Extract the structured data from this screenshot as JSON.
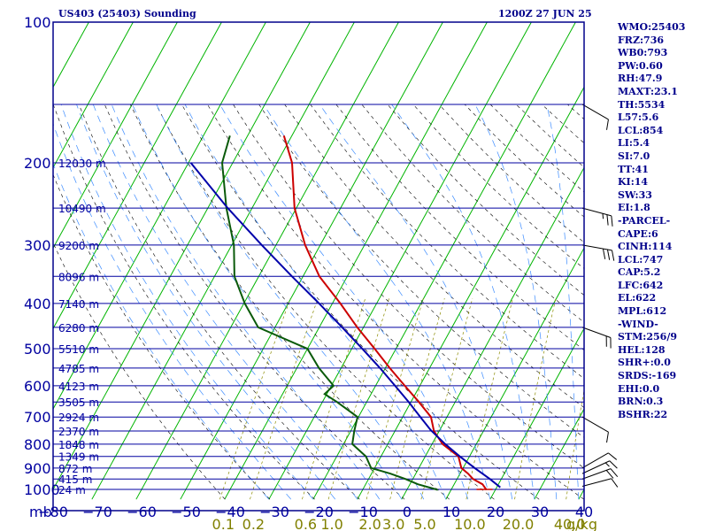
{
  "header": {
    "title": "US403 (25403) Sounding",
    "time": "1200Z 27 JUN 25"
  },
  "indices": [
    "WMO:25403",
    "FRZ:736",
    "WB0:793",
    "PW:0.60",
    "RH:47.9",
    "MAXT:23.1",
    "TH:5534",
    "L57:5.6",
    "LCL:854",
    "LI:5.4",
    "SI:7.0",
    "TT:41",
    "KI:14",
    "SW:33",
    "EI:1.8",
    "-PARCEL-",
    "CAPE:6",
    "CINH:114",
    "LCL:747",
    "CAP:5.2",
    "LFC:642",
    "EL:622",
    "MPL:612",
    "-WIND-",
    "STM:256/9",
    "HEL:128",
    "SHR+:0.0",
    "SRDS:-169",
    "EHI:0.0",
    "BRN:0.3",
    "BSHR:22"
  ],
  "colors": {
    "frame": "#00008b",
    "isobar": "#0000a0",
    "isotherm": "#00b400",
    "dry_adiabat": "#000000",
    "moist_adiabat": "#3c8cff",
    "mixing_ratio": "#8b8b00",
    "temperature": "#cc0000",
    "dewpoint": "#0a5a0a",
    "parcel": "#0000aa",
    "wind": "#000000",
    "label": "#0000a0",
    "mixing_label": "#808000"
  },
  "chart_data": {
    "type": "skew-t",
    "title": "US403 (25403) Sounding",
    "pressure_unit": "mb",
    "pressure_ticks": [
      100,
      200,
      300,
      400,
      500,
      600,
      700,
      800,
      900,
      1000
    ],
    "pressure_range": [
      100,
      1000
    ],
    "temperature_range": [
      -80,
      40
    ],
    "temperature_ticks": [
      -80,
      -70,
      -60,
      -50,
      -40,
      -30,
      -20,
      -10,
      0,
      10,
      20,
      30,
      40
    ],
    "temperature_tick_labels": [
      "−80",
      "−70",
      "−60",
      "−50",
      "−40",
      "−30",
      "−20",
      "−10",
      "0",
      "10",
      "20",
      "30",
      "40"
    ],
    "grid": true,
    "height_labels": [
      {
        "p": 200,
        "text": "12030 m"
      },
      {
        "p": 250,
        "text": "10490 m"
      },
      {
        "p": 300,
        "text": "9200 m"
      },
      {
        "p": 350,
        "text": "8096 m"
      },
      {
        "p": 400,
        "text": "7140 m"
      },
      {
        "p": 450,
        "text": "6280 m"
      },
      {
        "p": 500,
        "text": "5510 m"
      },
      {
        "p": 550,
        "text": "4785 m"
      },
      {
        "p": 600,
        "text": "4123 m"
      },
      {
        "p": 650,
        "text": "3505 m"
      },
      {
        "p": 700,
        "text": "2924 m"
      },
      {
        "p": 750,
        "text": "2370 m"
      },
      {
        "p": 800,
        "text": "1848 m"
      },
      {
        "p": 850,
        "text": "1349 m"
      },
      {
        "p": 900,
        "text": "872 m"
      },
      {
        "p": 950,
        "text": "415 m"
      },
      {
        "p": 1000,
        "text": "24 m"
      }
    ],
    "mixing_ratio_labels": [
      {
        "w": 0.1,
        "text": "0.1"
      },
      {
        "w": 0.2,
        "text": "0.2"
      },
      {
        "w": 0.6,
        "text": "0.6"
      },
      {
        "w": 1.0,
        "text": "1.0"
      },
      {
        "w": 2.0,
        "text": "2.0"
      },
      {
        "w": 3.0,
        "text": "3.0"
      },
      {
        "w": 5.0,
        "text": "5.0"
      },
      {
        "w": 10.0,
        "text": "10.0"
      },
      {
        "w": 20.0,
        "text": "20.0"
      },
      {
        "w": 40.0,
        "text": "40.0"
      }
    ],
    "mixing_ratio_unit": "g/kg",
    "series": [
      {
        "name": "Temperature",
        "color": "#cc0000",
        "points": [
          {
            "p": 1002,
            "t": 18.0
          },
          {
            "p": 975,
            "t": 16.4
          },
          {
            "p": 950,
            "t": 13.6
          },
          {
            "p": 925,
            "t": 11.8
          },
          {
            "p": 900,
            "t": 9.6
          },
          {
            "p": 850,
            "t": 7.5
          },
          {
            "p": 800,
            "t": 2.4
          },
          {
            "p": 750,
            "t": -1.2
          },
          {
            "p": 700,
            "t": -3.6
          },
          {
            "p": 650,
            "t": -8.2
          },
          {
            "p": 600,
            "t": -13.4
          },
          {
            "p": 550,
            "t": -19.0
          },
          {
            "p": 500,
            "t": -24.8
          },
          {
            "p": 450,
            "t": -31.4
          },
          {
            "p": 400,
            "t": -38.2
          },
          {
            "p": 350,
            "t": -46.3
          },
          {
            "p": 300,
            "t": -53.4
          },
          {
            "p": 250,
            "t": -60.4
          },
          {
            "p": 200,
            "t": -66.6
          },
          {
            "p": 175,
            "t": -71.8
          }
        ]
      },
      {
        "name": "Dewpoint",
        "color": "#0a5a0a",
        "points": [
          {
            "p": 1002,
            "t": 7.0
          },
          {
            "p": 975,
            "t": 1.8
          },
          {
            "p": 950,
            "t": -1.7
          },
          {
            "p": 925,
            "t": -5.8
          },
          {
            "p": 900,
            "t": -10.8
          },
          {
            "p": 850,
            "t": -13.4
          },
          {
            "p": 800,
            "t": -18.0
          },
          {
            "p": 750,
            "t": -19.2
          },
          {
            "p": 700,
            "t": -20.2
          },
          {
            "p": 650,
            "t": -26.7
          },
          {
            "p": 625,
            "t": -30.5
          },
          {
            "p": 600,
            "t": -29.5
          },
          {
            "p": 550,
            "t": -35.0
          },
          {
            "p": 500,
            "t": -40.0
          },
          {
            "p": 450,
            "t": -53.8
          },
          {
            "p": 400,
            "t": -59.8
          },
          {
            "p": 350,
            "t": -65.5
          },
          {
            "p": 300,
            "t": -69.5
          },
          {
            "p": 250,
            "t": -75.8
          },
          {
            "p": 200,
            "t": -82.4
          },
          {
            "p": 175,
            "t": -84.0
          }
        ]
      },
      {
        "name": "Parcel",
        "color": "#0000aa",
        "points": [
          {
            "p": 990,
            "t": 20.8
          },
          {
            "p": 950,
            "t": 17.4
          },
          {
            "p": 900,
            "t": 12.6
          },
          {
            "p": 850,
            "t": 7.8
          },
          {
            "p": 800,
            "t": 3.0
          },
          {
            "p": 747,
            "t": -2.0
          },
          {
            "p": 700,
            "t": -6.0
          },
          {
            "p": 650,
            "t": -10.5
          },
          {
            "p": 600,
            "t": -15.6
          },
          {
            "p": 550,
            "t": -21.2
          },
          {
            "p": 500,
            "t": -27.6
          },
          {
            "p": 450,
            "t": -34.8
          },
          {
            "p": 400,
            "t": -43.0
          },
          {
            "p": 350,
            "t": -52.5
          },
          {
            "p": 300,
            "t": -63.2
          },
          {
            "p": 250,
            "t": -75.5
          },
          {
            "p": 200,
            "t": -89.5
          }
        ]
      }
    ],
    "wind_barbs": [
      {
        "p": 985,
        "dir": 255,
        "spd": 10
      },
      {
        "p": 950,
        "dir": 250,
        "spd": 20
      },
      {
        "p": 925,
        "dir": 245,
        "spd": 15
      },
      {
        "p": 900,
        "dir": 240,
        "spd": 10
      },
      {
        "p": 700,
        "dir": 300,
        "spd": 10
      },
      {
        "p": 450,
        "dir": 290,
        "spd": 20
      },
      {
        "p": 300,
        "dir": 280,
        "spd": 30
      },
      {
        "p": 250,
        "dir": 285,
        "spd": 25
      },
      {
        "p": 150,
        "dir": 300,
        "spd": 10
      }
    ],
    "surface_wind": {
      "dir": 270,
      "spd": 5
    }
  }
}
